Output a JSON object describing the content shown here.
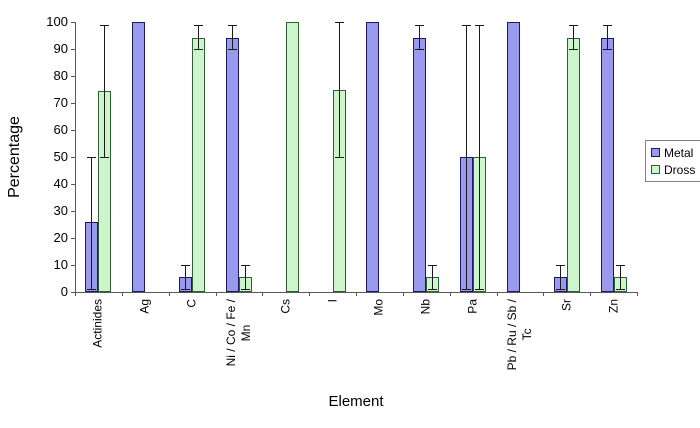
{
  "figure": {
    "background": "#FFFFFF"
  },
  "chart_data": {
    "type": "bar",
    "title": "",
    "xlabel": "Element",
    "ylabel": "Percentage",
    "ylim": [
      0,
      100
    ],
    "yticks": [
      0,
      10,
      20,
      30,
      40,
      50,
      60,
      70,
      80,
      90,
      100
    ],
    "grid": false,
    "legend_position": "right-middle",
    "error_bars": true,
    "axis_color": "#595959",
    "error_bar_color": "#1A1A1A",
    "text_color": "#000000",
    "categories": [
      "Actinides",
      "Ag",
      "C",
      "Ni / Co / Fe /\nMn",
      "Cs",
      "I",
      "Mo",
      "Nb",
      "Pa",
      "Pb / Ru / Sb /\nTc",
      "Sr",
      "Zn"
    ],
    "series": [
      {
        "name": "Metal",
        "fill": "#9999EE",
        "border": "#1A1A5E",
        "values": [
          26,
          100,
          5.5,
          94,
          0,
          0,
          100,
          94,
          50,
          100,
          5.5,
          94
        ],
        "error_low": [
          1,
          null,
          1,
          90,
          null,
          null,
          null,
          90,
          1,
          null,
          1,
          90
        ],
        "error_high": [
          50,
          null,
          10,
          99,
          null,
          null,
          null,
          99,
          99,
          null,
          10,
          99
        ]
      },
      {
        "name": "Dross",
        "fill": "#CCF5CC",
        "border": "#2F5E35",
        "values": [
          74.5,
          0,
          94,
          5.5,
          100,
          75,
          0,
          5.5,
          50,
          0,
          94,
          5.5
        ],
        "error_low": [
          50,
          null,
          90,
          1,
          null,
          50,
          null,
          1,
          1,
          null,
          90,
          1
        ],
        "error_high": [
          99,
          null,
          99,
          10,
          null,
          100,
          null,
          10,
          99,
          null,
          99,
          10
        ]
      }
    ]
  }
}
